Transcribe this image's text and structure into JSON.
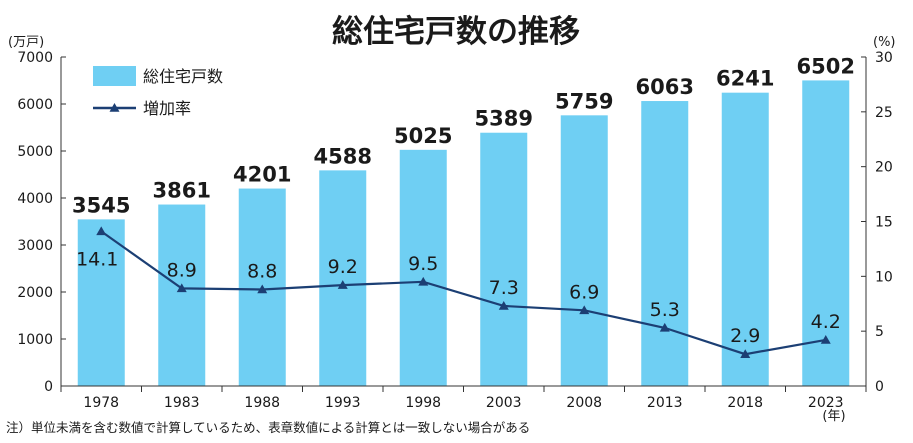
{
  "colors": {
    "bar": "#6fcff3",
    "line": "#1c3f74",
    "axis": "#333333"
  },
  "chart_data": {
    "type": "bar",
    "title": "総住宅戸数の推移",
    "y_left_unit": "(万戸)",
    "y_right_unit": "(%)",
    "x_unit": "(年)",
    "categories": [
      "1978",
      "1983",
      "1988",
      "1993",
      "1998",
      "2003",
      "2008",
      "2013",
      "2018",
      "2023"
    ],
    "ylim_left": [
      0,
      7000
    ],
    "yticks_left": [
      "0",
      "1000",
      "2000",
      "3000",
      "4000",
      "5000",
      "6000",
      "7000"
    ],
    "ylim_right": [
      0,
      30
    ],
    "yticks_right": [
      "0",
      "5",
      "10",
      "15",
      "20",
      "25",
      "30"
    ],
    "grid": false,
    "legend_position": "top-left",
    "series": [
      {
        "name": "総住宅戸数",
        "type": "bar",
        "axis": "left",
        "values": [
          3545,
          3861,
          4201,
          4588,
          5025,
          5389,
          5759,
          6063,
          6241,
          6502
        ],
        "labels": [
          "3545",
          "3861",
          "4201",
          "4588",
          "5025",
          "5389",
          "5759",
          "6063",
          "6241",
          "6502"
        ]
      },
      {
        "name": "増加率",
        "type": "line",
        "axis": "right",
        "values": [
          14.1,
          8.9,
          8.8,
          9.2,
          9.5,
          7.3,
          6.9,
          5.3,
          2.9,
          4.2
        ],
        "labels": [
          "14.1",
          "8.9",
          "8.8",
          "9.2",
          "9.5",
          "7.3",
          "6.9",
          "5.3",
          "2.9",
          "4.2"
        ]
      }
    ],
    "note": "注）単位未満を含む数値で計算しているため、表章数値による計算とは一致しない場合がある"
  }
}
